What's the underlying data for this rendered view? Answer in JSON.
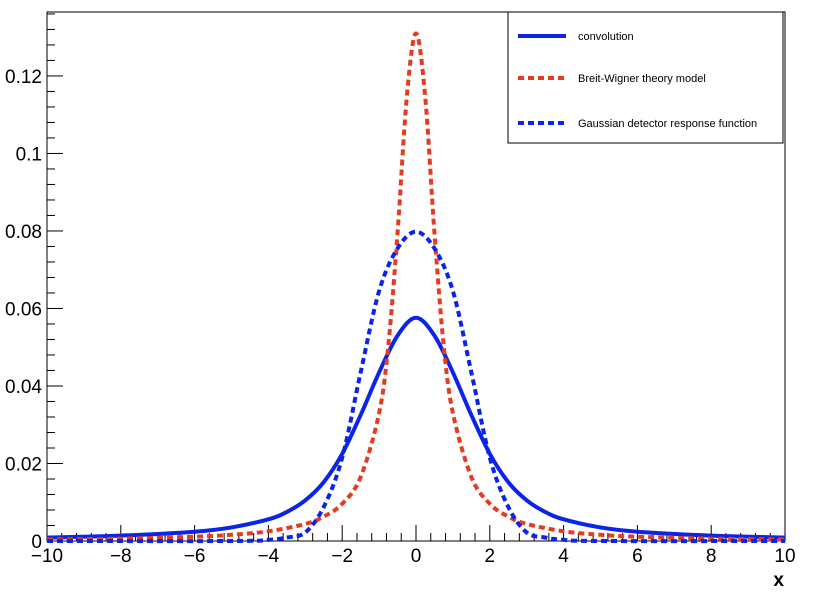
{
  "chart_data": {
    "type": "line",
    "xlabel": "x",
    "ylabel": "",
    "xlim": [
      -10,
      10
    ],
    "ylim": [
      0,
      0.1365
    ],
    "x_ticks": [
      -10,
      -8,
      -6,
      -4,
      -2,
      0,
      2,
      4,
      6,
      8,
      10
    ],
    "x_tick_labels": [
      "−10",
      "−8",
      "−6",
      "−4",
      "−2",
      "0",
      "2",
      "4",
      "6",
      "8",
      "10"
    ],
    "y_ticks": [
      0,
      0.02,
      0.04,
      0.06,
      0.08,
      0.1,
      0.12
    ],
    "y_tick_labels": [
      "0",
      "0.02",
      "0.04",
      "0.06",
      "0.08",
      "0.1",
      "0.12"
    ],
    "grid": false,
    "legend_position": "top-right",
    "series": [
      {
        "name": "convolution",
        "color": "#0b24e8",
        "style": "solid",
        "x": [
          -10,
          -8,
          -6,
          -5,
          -4,
          -3.5,
          -3,
          -2.5,
          -2,
          -1.5,
          -1,
          -0.5,
          0,
          0.5,
          1,
          1.5,
          2,
          2.5,
          3,
          3.5,
          4,
          5,
          6,
          8,
          10
        ],
        "y": [
          0.0009,
          0.0014,
          0.0024,
          0.0035,
          0.0056,
          0.0075,
          0.0105,
          0.0152,
          0.0225,
          0.0325,
          0.0435,
          0.053,
          0.0576,
          0.053,
          0.0435,
          0.0325,
          0.0225,
          0.0152,
          0.0105,
          0.0075,
          0.0056,
          0.0035,
          0.0024,
          0.0014,
          0.0009
        ]
      },
      {
        "name": "Breit-Wigner theory model",
        "color": "#e53b22",
        "style": "dashed",
        "x": [
          -10,
          -8,
          -6,
          -5,
          -4,
          -3,
          -2.5,
          -2,
          -1.5,
          -1,
          -0.75,
          -0.5,
          -0.25,
          0,
          0.25,
          0.5,
          0.75,
          1,
          1.5,
          2,
          2.5,
          3,
          4,
          5,
          6,
          8,
          10
        ],
        "y": [
          0.0004,
          0.0006,
          0.0011,
          0.0016,
          0.0025,
          0.0044,
          0.0063,
          0.0096,
          0.0165,
          0.033,
          0.0505,
          0.0795,
          0.1145,
          0.131,
          0.1145,
          0.0795,
          0.0505,
          0.033,
          0.0165,
          0.0096,
          0.0063,
          0.0044,
          0.0025,
          0.0016,
          0.0011,
          0.0006,
          0.0004
        ]
      },
      {
        "name": "Gaussian detector response function",
        "color": "#0b24e8",
        "style": "dashed",
        "x": [
          -10,
          -5,
          -4,
          -3.5,
          -3,
          -2.5,
          -2,
          -1.5,
          -1,
          -0.5,
          0,
          0.5,
          1,
          1.5,
          2,
          2.5,
          3,
          3.5,
          4,
          5,
          10
        ],
        "y": [
          0,
          0,
          0.0003,
          0.0009,
          0.0022,
          0.0088,
          0.0215,
          0.0435,
          0.0645,
          0.0755,
          0.0798,
          0.0755,
          0.0645,
          0.0435,
          0.0215,
          0.0088,
          0.0022,
          0.0009,
          0.0003,
          0,
          0
        ]
      }
    ]
  }
}
